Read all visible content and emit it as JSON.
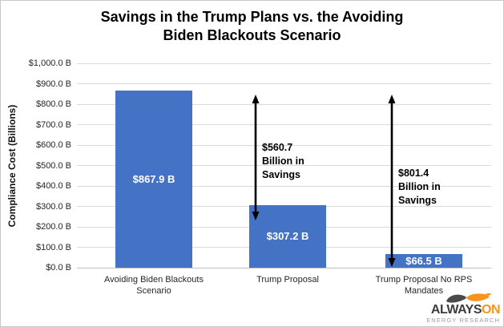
{
  "title": {
    "full": "Savings in the Trump Plans vs. the Avoiding Biden Blackouts Scenario",
    "line1": "Savings in the Trump Plans vs. the Avoiding",
    "line2": "Biden Blackouts Scenario"
  },
  "chart_data": {
    "type": "bar",
    "title": "Savings in the Trump Plans vs. the Avoiding Biden Blackouts Scenario",
    "xlabel": "",
    "ylabel": "Compliance Cost (Billions)",
    "categories": [
      "Avoiding Biden Blackouts Scenario",
      "Trump Proposal",
      "Trump Proposal No RPS Mandates"
    ],
    "values": [
      867.9,
      307.2,
      66.5
    ],
    "bar_labels": [
      "$867.9 B",
      "$307.2 B",
      "$66.5 B"
    ],
    "ylim": [
      0,
      1000
    ],
    "ytick_step": 100,
    "ytick_labels": [
      "$1,000.0 B",
      "$900.0 B",
      "$800.0 B",
      "$700.0 B",
      "$600.0 B",
      "$500.0 B",
      "$400.0 B",
      "$300.0 B",
      "$200.0 B",
      "$100.0 B",
      "$0.0 B"
    ],
    "grid": true,
    "legend": false,
    "bar_color": "#4472C4",
    "annotations": [
      {
        "lines": [
          "$560.7",
          "Billion in",
          "Savings"
        ],
        "value": 560.7,
        "between": [
          "Avoiding Biden Blackouts Scenario",
          "Trump Proposal"
        ]
      },
      {
        "lines": [
          "$801.4",
          "Billion in",
          "Savings"
        ],
        "value": 801.4,
        "between": [
          "Avoiding Biden Blackouts Scenario",
          "Trump Proposal No RPS Mandates"
        ]
      }
    ]
  },
  "logo": {
    "brand_main": "ALWAYS",
    "brand_accent": "ON",
    "subtitle": "ENERGY RESEARCH"
  },
  "colors": {
    "bar": "#4472C4",
    "gridline": "#d9d9d9",
    "axis_line": "#bfbfbf",
    "arrow": "#000000",
    "logo_gray": "#4a4a4c",
    "logo_orange": "#F7941D",
    "logo_subtitle": "#9b9b9b"
  }
}
